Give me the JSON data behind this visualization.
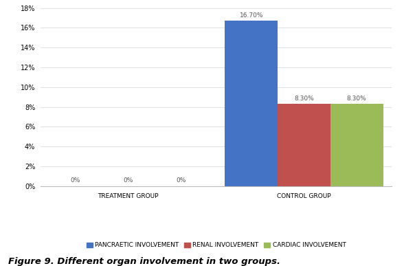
{
  "groups": [
    "TREATMENT GROUP",
    "CONTROL GROUP"
  ],
  "series": [
    {
      "name": "PANCRAETIC INVOLVEMENT",
      "color": "#4472C4",
      "values": [
        0.0,
        16.7
      ]
    },
    {
      "name": "RENAL INVOLVEMENT",
      "color": "#C0504D",
      "values": [
        0.0,
        8.3
      ]
    },
    {
      "name": "CARDIAC INVOLVEMENT",
      "color": "#9BBB59",
      "values": [
        0.0,
        8.3
      ]
    }
  ],
  "ylim": [
    0,
    18
  ],
  "yticks": [
    0,
    2,
    4,
    6,
    8,
    10,
    12,
    14,
    16,
    18
  ],
  "ytick_labels": [
    "0%",
    "2%",
    "4%",
    "6%",
    "8%",
    "10%",
    "12%",
    "14%",
    "16%",
    "18%"
  ],
  "bar_width": 0.15,
  "caption": "Figure 9. Different organ involvement in two groups.",
  "background_color": "#ffffff",
  "grid_color": "#e0e0e0",
  "label_fontsize": 6.5,
  "legend_fontsize": 6.5,
  "axis_tick_fontsize": 7.0,
  "xticklabel_fontsize": 6.5,
  "caption_fontsize": 9.5,
  "caption_color": "#000000"
}
